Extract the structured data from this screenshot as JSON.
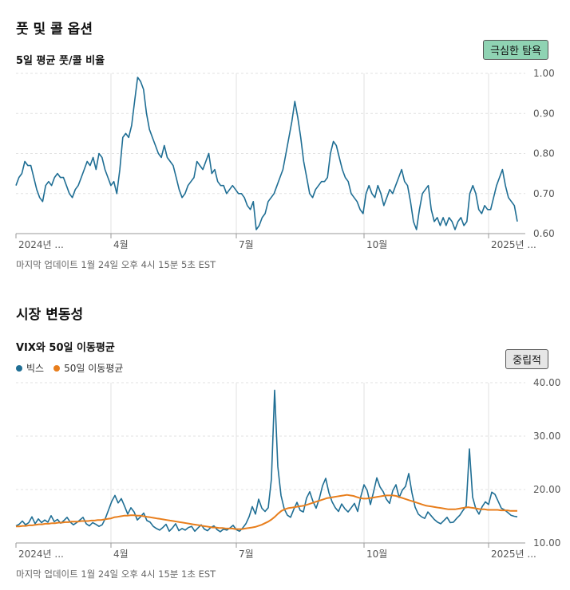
{
  "section1": {
    "title": "풋 및 콜 옵션",
    "chart_title": "5일 평균 풋/콜 비율",
    "badge": "극심한 탐욕",
    "note": "마지막 업데이트 1월 24일 오후 4시 15분 5초 EST"
  },
  "section2": {
    "title": "시장 변동성",
    "chart_title": "VIX와 50일 이동평균",
    "badge": "중립적",
    "note": "마지막 업데이트 1월 24일 오후 4시 15분 1초 EST",
    "legend": [
      {
        "label": "빅스",
        "color": "#1f6e94"
      },
      {
        "label": "50일 이동평균",
        "color": "#e87e1c"
      }
    ]
  },
  "colors": {
    "line_blue": "#1f6e94",
    "line_orange": "#e87e1c",
    "grid": "#e2e2e2",
    "axis": "#999999"
  },
  "chart_data": [
    {
      "type": "line",
      "title": "5일 평균 풋/콜 비율",
      "xlabel": "",
      "ylabel": "",
      "ylim": [
        0.6,
        1.0
      ],
      "yticks": [
        "1.00",
        "0.90",
        "0.80",
        "0.70",
        "0.60"
      ],
      "xticks": [
        "2024년 ...",
        "4월",
        "7월",
        "10월",
        "2025년 ..."
      ],
      "grid": true,
      "series": [
        {
          "values": [
            0.72,
            0.74,
            0.75,
            0.78,
            0.77,
            0.77,
            0.74,
            0.71,
            0.69,
            0.68,
            0.72,
            0.73,
            0.72,
            0.74,
            0.75,
            0.74,
            0.74,
            0.72,
            0.7,
            0.69,
            0.71,
            0.72,
            0.74,
            0.76,
            0.78,
            0.77,
            0.79,
            0.76,
            0.8,
            0.79,
            0.76,
            0.74,
            0.72,
            0.73,
            0.7,
            0.76,
            0.84,
            0.85,
            0.84,
            0.87,
            0.93,
            0.99,
            0.98,
            0.96,
            0.9,
            0.86,
            0.84,
            0.82,
            0.8,
            0.79,
            0.82,
            0.79,
            0.78,
            0.77,
            0.74,
            0.71,
            0.69,
            0.7,
            0.72,
            0.73,
            0.74,
            0.78,
            0.77,
            0.76,
            0.78,
            0.8,
            0.75,
            0.76,
            0.73,
            0.72,
            0.72,
            0.7,
            0.71,
            0.72,
            0.71,
            0.7,
            0.7,
            0.69,
            0.67,
            0.66,
            0.68,
            0.61,
            0.62,
            0.64,
            0.65,
            0.68,
            0.69,
            0.7,
            0.72,
            0.74,
            0.76,
            0.8,
            0.84,
            0.88,
            0.93,
            0.89,
            0.84,
            0.78,
            0.74,
            0.7,
            0.69,
            0.71,
            0.72,
            0.73,
            0.73,
            0.74,
            0.8,
            0.83,
            0.82,
            0.79,
            0.76,
            0.74,
            0.73,
            0.7,
            0.69,
            0.68,
            0.66,
            0.65,
            0.7,
            0.72,
            0.7,
            0.69,
            0.72,
            0.7,
            0.67,
            0.69,
            0.71,
            0.7,
            0.72,
            0.74,
            0.76,
            0.73,
            0.72,
            0.68,
            0.63,
            0.61,
            0.66,
            0.7,
            0.71,
            0.72,
            0.66,
            0.63,
            0.64,
            0.62,
            0.64,
            0.62,
            0.64,
            0.63,
            0.61,
            0.63,
            0.64,
            0.62,
            0.63,
            0.7,
            0.72,
            0.7,
            0.66,
            0.65,
            0.67,
            0.66,
            0.66,
            0.69,
            0.72,
            0.74,
            0.76,
            0.72,
            0.69,
            0.68,
            0.67,
            0.63
          ]
        }
      ]
    },
    {
      "type": "line",
      "title": "VIX와 50일 이동평균",
      "xlabel": "",
      "ylabel": "",
      "ylim": [
        10,
        40
      ],
      "yticks": [
        "40.00",
        "30.00",
        "20.00",
        "10.00"
      ],
      "xticks": [
        "2024년 ...",
        "4월",
        "7월",
        "10월",
        "2025년 ..."
      ],
      "grid": true,
      "series": [
        {
          "name": "빅스",
          "values": [
            13.2,
            13.5,
            14.1,
            13.4,
            13.8,
            14.9,
            13.6,
            14.5,
            13.8,
            14.3,
            13.9,
            15.1,
            14.0,
            14.4,
            13.7,
            14.2,
            14.8,
            13.9,
            13.4,
            13.8,
            14.3,
            14.8,
            13.6,
            13.2,
            13.8,
            13.5,
            13.1,
            13.4,
            14.6,
            16.2,
            17.8,
            18.9,
            17.5,
            18.3,
            16.9,
            15.4,
            16.6,
            15.8,
            14.3,
            14.9,
            15.6,
            14.2,
            13.9,
            13.1,
            12.7,
            12.4,
            12.9,
            13.5,
            12.2,
            12.8,
            13.6,
            12.3,
            12.7,
            12.4,
            12.9,
            13.1,
            12.2,
            12.8,
            13.4,
            12.6,
            12.3,
            12.9,
            13.2,
            12.5,
            12.1,
            12.6,
            12.4,
            12.8,
            13.3,
            12.5,
            12.2,
            12.8,
            13.6,
            14.9,
            16.8,
            15.4,
            18.2,
            16.5,
            15.9,
            16.6,
            22.0,
            38.6,
            24.3,
            18.9,
            16.4,
            15.2,
            14.8,
            16.3,
            17.6,
            16.1,
            15.8,
            18.4,
            19.6,
            17.8,
            16.5,
            18.3,
            20.7,
            22.1,
            19.4,
            17.7,
            16.6,
            15.9,
            17.3,
            16.4,
            15.8,
            16.6,
            17.4,
            15.9,
            18.7,
            20.9,
            19.8,
            17.2,
            19.6,
            22.2,
            20.5,
            19.6,
            18.2,
            17.4,
            19.8,
            20.9,
            18.5,
            19.9,
            20.6,
            23.0,
            19.4,
            16.7,
            15.4,
            14.9,
            14.6,
            15.8,
            15.1,
            14.4,
            13.9,
            13.6,
            14.2,
            14.8,
            13.8,
            13.9,
            14.6,
            15.2,
            16.1,
            16.9,
            27.6,
            18.6,
            16.4,
            15.4,
            16.8,
            17.7,
            17.2,
            19.5,
            19.1,
            17.8,
            16.5,
            16.2,
            15.7,
            15.2,
            15.0,
            14.9
          ]
        },
        {
          "name": "50일 이동평균",
          "values": [
            13.1,
            13.1,
            13.2,
            13.2,
            13.3,
            13.3,
            13.4,
            13.5,
            13.5,
            13.6,
            13.6,
            13.7,
            13.7,
            13.8,
            13.8,
            13.9,
            13.9,
            14.0,
            14.0,
            14.0,
            14.1,
            14.1,
            14.1,
            14.2,
            14.2,
            14.3,
            14.3,
            14.4,
            14.5,
            14.6,
            14.8,
            14.9,
            15.0,
            15.1,
            15.1,
            15.2,
            15.2,
            15.1,
            15.1,
            15.0,
            14.9,
            14.8,
            14.7,
            14.6,
            14.5,
            14.4,
            14.3,
            14.2,
            14.1,
            14.0,
            13.9,
            13.8,
            13.7,
            13.6,
            13.5,
            13.4,
            13.3,
            13.2,
            13.1,
            13.0,
            12.9,
            12.9,
            12.8,
            12.8,
            12.7,
            12.7,
            12.7,
            12.6,
            12.6,
            12.6,
            12.7,
            12.8,
            12.9,
            13.0,
            13.2,
            13.4,
            13.7,
            14.0,
            14.4,
            14.9,
            15.5,
            16.0,
            16.3,
            16.5,
            16.6,
            16.7,
            16.8,
            16.9,
            17.0,
            17.2,
            17.4,
            17.6,
            17.8,
            18.0,
            18.2,
            18.4,
            18.5,
            18.6,
            18.7,
            18.8,
            18.9,
            19.0,
            18.9,
            18.8,
            18.6,
            18.4,
            18.3,
            18.3,
            18.4,
            18.5,
            18.6,
            18.7,
            18.8,
            18.9,
            18.9,
            18.9,
            18.8,
            18.6,
            18.4,
            18.2,
            18.0,
            17.8,
            17.6,
            17.4,
            17.2,
            17.0,
            16.9,
            16.8,
            16.7,
            16.6,
            16.5,
            16.4,
            16.3,
            16.3,
            16.3,
            16.4,
            16.5,
            16.6,
            16.7,
            16.6,
            16.5,
            16.4,
            16.3,
            16.3,
            16.2,
            16.2,
            16.2,
            16.2,
            16.1,
            16.1,
            16.1,
            16.0,
            16.0,
            16.0
          ]
        }
      ]
    }
  ]
}
